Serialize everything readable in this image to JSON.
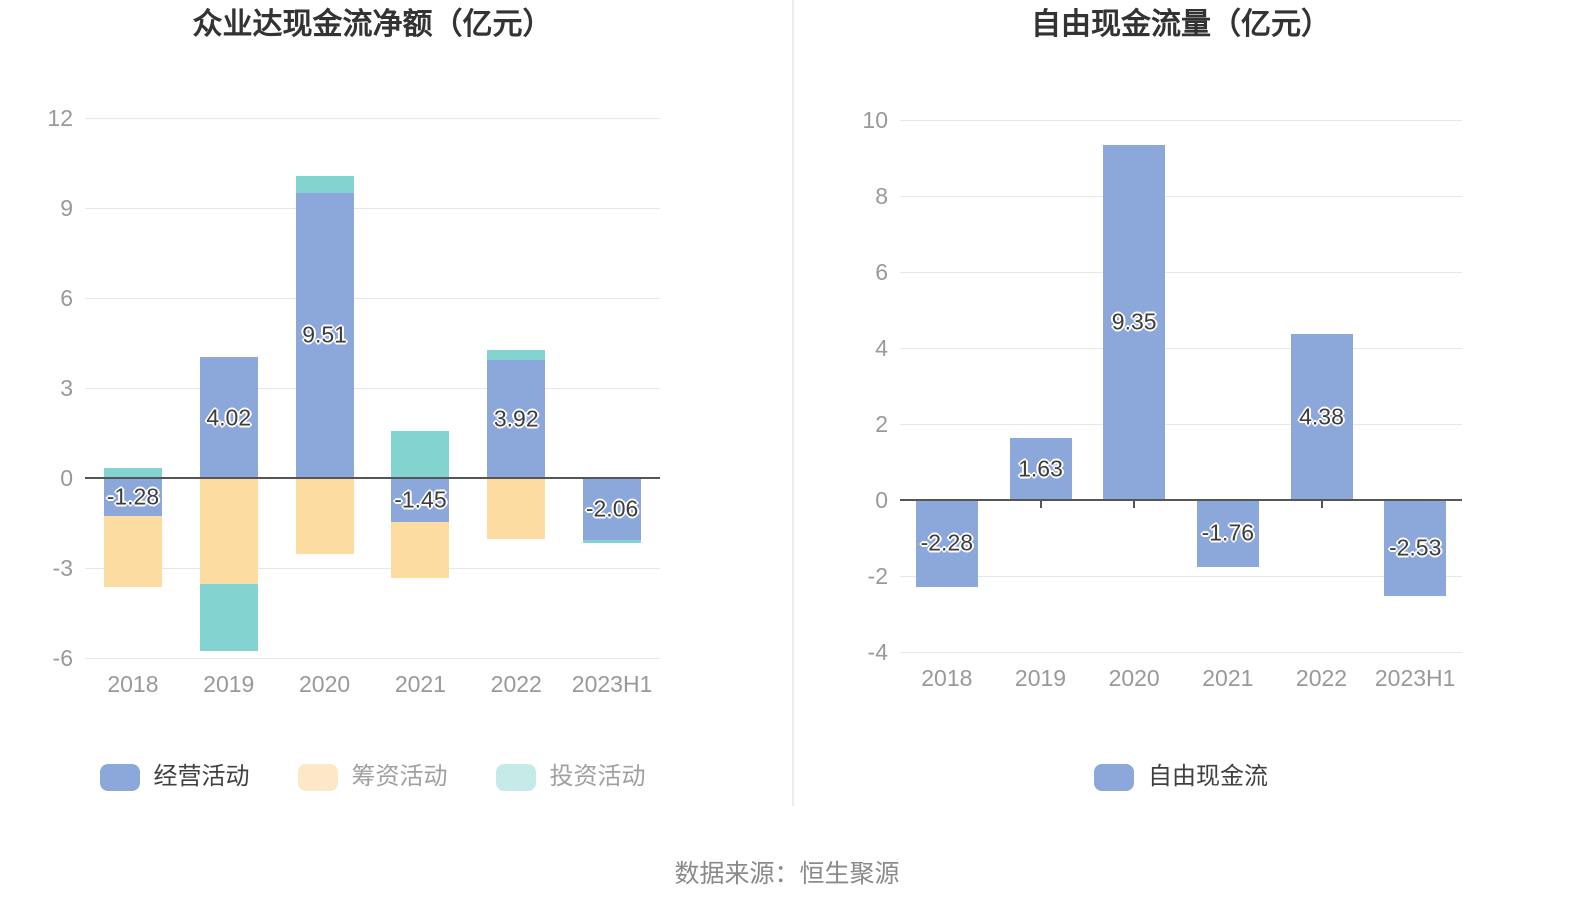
{
  "source_note": "数据来源：恒生聚源",
  "style": {
    "grid_color": "#e2e7f3",
    "zero_line_color": "#565656",
    "axis_label_color": "#999999",
    "bar_label_color": "#3d3d3d",
    "title_color": "#333333"
  },
  "chart_data": [
    {
      "type": "bar",
      "stacked": true,
      "title": "众业达现金流净额（亿元）",
      "categories": [
        "2018",
        "2019",
        "2020",
        "2021",
        "2022",
        "2023H1"
      ],
      "ylim": [
        -6,
        12
      ],
      "yticks": [
        12,
        9,
        6,
        3,
        0,
        -3,
        -6
      ],
      "grid": true,
      "legend_position": "bottom",
      "series": [
        {
          "name": "经营活动",
          "color": "#8ca7d9",
          "values": [
            -1.28,
            4.02,
            9.51,
            -1.45,
            3.92,
            -2.06
          ],
          "labels": [
            "-1.28",
            "4.02",
            "9.51",
            "-1.45",
            "3.92",
            "-2.06"
          ]
        },
        {
          "name": "筹资活动",
          "color": "#fddca2",
          "values": [
            -2.36,
            -3.54,
            -2.53,
            -1.88,
            -2.02,
            0
          ]
        },
        {
          "name": "投资活动",
          "color": "#83d3d1",
          "values": [
            0.35,
            -2.22,
            0.56,
            1.57,
            0.36,
            -0.12
          ]
        }
      ],
      "legend": [
        {
          "label": "经营活动",
          "swatch": "#8ca7d9",
          "text_color": "#404040"
        },
        {
          "label": "筹资活动",
          "swatch": "#fce8c6",
          "text_color": "#a0a0a0"
        },
        {
          "label": "投资活动",
          "swatch": "#c6eae7",
          "text_color": "#a0a0a0"
        }
      ]
    },
    {
      "type": "bar",
      "stacked": false,
      "title": "自由现金流量（亿元）",
      "categories": [
        "2018",
        "2019",
        "2020",
        "2021",
        "2022",
        "2023H1"
      ],
      "ylim": [
        -4,
        10
      ],
      "yticks": [
        10,
        8,
        6,
        4,
        2,
        0,
        -2,
        -4
      ],
      "grid": true,
      "legend_position": "bottom",
      "series": [
        {
          "name": "自由现金流",
          "color": "#8ca7d9",
          "values": [
            -2.28,
            1.63,
            9.35,
            -1.76,
            4.38,
            -2.53
          ],
          "labels": [
            "-2.28",
            "1.63",
            "9.35",
            "-1.76",
            "4.38",
            "-2.53"
          ]
        }
      ],
      "legend": [
        {
          "label": "自由现金流",
          "swatch": "#8ca7d9",
          "text_color": "#404040"
        }
      ]
    }
  ]
}
